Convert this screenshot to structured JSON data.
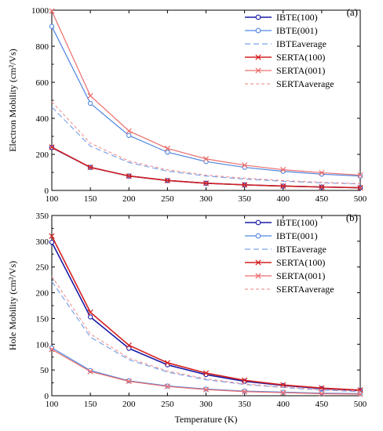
{
  "colors": {
    "ibte100": "#1a1aa6",
    "ibte001": "#4f86e0",
    "ibteavg": "#7ea3e8",
    "serta100": "#d42020",
    "serta001": "#ec6d6d",
    "sertaavg": "#f09a9a"
  },
  "chart_data": [
    {
      "type": "line",
      "panel_label": "(a)",
      "xlabel": "",
      "ylabel": "Electron Mobility (cm²/Vs)",
      "x": [
        100,
        150,
        200,
        250,
        300,
        350,
        400,
        450,
        500
      ],
      "xlim": [
        100,
        500
      ],
      "ylim": [
        0,
        1000
      ],
      "xticks": [
        "100",
        "150",
        "200",
        "250",
        "300",
        "350",
        "400",
        "450",
        "500"
      ],
      "yticks": [
        "0",
        "200",
        "400",
        "600",
        "800",
        "1000"
      ],
      "legend_position": "top-right",
      "series": [
        {
          "name": "IBTE(100)",
          "values": [
            238,
            128,
            80,
            55,
            40,
            31,
            24,
            19,
            15
          ]
        },
        {
          "name": "IBTE(001)",
          "values": [
            910,
            483,
            305,
            212,
            160,
            128,
            106,
            90,
            80
          ]
        },
        {
          "name": "IBTEaverage",
          "values": [
            462,
            246,
            155,
            107,
            80,
            63,
            51,
            42,
            36
          ]
        },
        {
          "name": "SERTA(100)",
          "values": [
            240,
            128,
            80,
            55,
            40,
            31,
            24,
            19,
            15
          ]
        },
        {
          "name": "SERTA(001)",
          "values": [
            995,
            525,
            330,
            233,
            175,
            140,
            115,
            98,
            85
          ]
        },
        {
          "name": "SERTAaverage",
          "values": [
            492,
            262,
            163,
            114,
            85,
            68,
            55,
            45,
            38
          ]
        }
      ]
    },
    {
      "type": "line",
      "panel_label": "(b)",
      "xlabel": "Temperature (K)",
      "ylabel": "Hole Mobility (cm²/Vs)",
      "x": [
        100,
        150,
        200,
        250,
        300,
        350,
        400,
        450,
        500
      ],
      "xlim": [
        100,
        500
      ],
      "ylim": [
        0,
        350
      ],
      "xticks": [
        "100",
        "150",
        "200",
        "250",
        "300",
        "350",
        "400",
        "450",
        "500"
      ],
      "yticks": [
        "0",
        "50",
        "100",
        "150",
        "200",
        "250",
        "300",
        "350"
      ],
      "legend_position": "top-right",
      "series": [
        {
          "name": "IBTE(100)",
          "values": [
            298,
            153,
            92,
            60,
            41,
            28,
            20,
            14,
            10
          ]
        },
        {
          "name": "IBTE(001)",
          "values": [
            93,
            49,
            29,
            19,
            13,
            9,
            7,
            5,
            4
          ]
        },
        {
          "name": "IBTEaverage",
          "values": [
            222,
            114,
            70,
            46,
            31,
            22,
            16,
            11,
            8
          ]
        },
        {
          "name": "SERTA(100)",
          "values": [
            310,
            162,
            98,
            64,
            44,
            30,
            21,
            15,
            11
          ]
        },
        {
          "name": "SERTA(001)",
          "values": [
            90,
            47,
            28,
            18,
            12,
            8,
            6,
            4,
            3
          ]
        },
        {
          "name": "SERTAaverage",
          "values": [
            232,
            120,
            73,
            48,
            33,
            23,
            17,
            12,
            9
          ]
        }
      ]
    }
  ]
}
